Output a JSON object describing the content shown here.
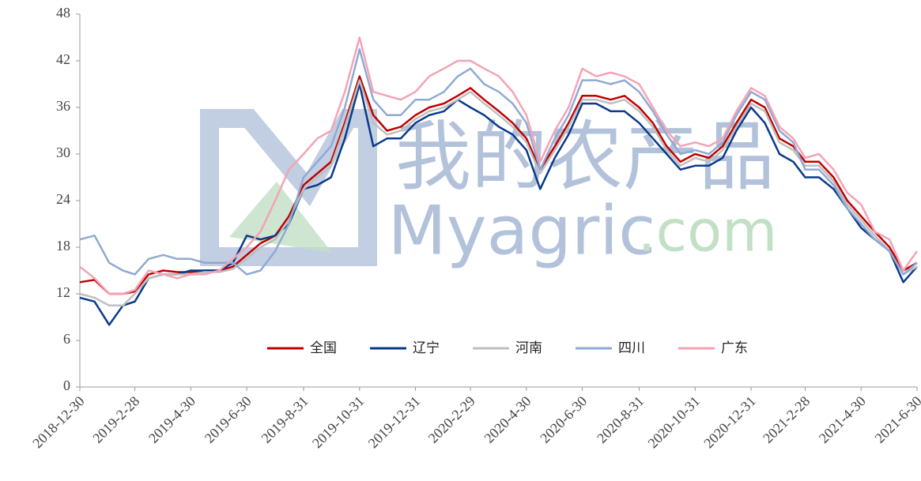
{
  "chart_data": {
    "type": "line",
    "watermark": [
      "我的农产品",
      "Myagric",
      ".com"
    ],
    "x": [
      "2018-12-30",
      "2019-1-15",
      "2019-1-31",
      "2019-2-15",
      "2019-2-28",
      "2019-3-15",
      "2019-3-31",
      "2019-4-15",
      "2019-4-30",
      "2019-5-15",
      "2019-5-31",
      "2019-6-15",
      "2019-6-30",
      "2019-7-15",
      "2019-7-31",
      "2019-8-15",
      "2019-8-31",
      "2019-9-15",
      "2019-9-30",
      "2019-10-15",
      "2019-10-31",
      "2019-11-15",
      "2019-11-30",
      "2019-12-15",
      "2019-12-31",
      "2020-1-15",
      "2020-1-31",
      "2020-2-15",
      "2020-2-29",
      "2020-3-15",
      "2020-3-31",
      "2020-4-15",
      "2020-4-30",
      "2020-5-15",
      "2020-5-31",
      "2020-6-15",
      "2020-6-30",
      "2020-7-15",
      "2020-7-31",
      "2020-8-15",
      "2020-8-31",
      "2020-9-15",
      "2020-9-30",
      "2020-10-15",
      "2020-10-31",
      "2020-11-15",
      "2020-11-30",
      "2020-12-15",
      "2020-12-31",
      "2021-1-15",
      "2021-1-31",
      "2021-2-15",
      "2021-2-28",
      "2021-3-15",
      "2021-3-31",
      "2021-4-15",
      "2021-4-30",
      "2021-5-15",
      "2021-5-31",
      "2021-6-15",
      "2021-6-30"
    ],
    "series": [
      {
        "name": "全国",
        "color": "#c00000",
        "values": [
          13.5,
          13.8,
          12,
          12,
          12.3,
          14.5,
          15,
          14.8,
          14.8,
          15,
          15,
          15.5,
          17,
          18.5,
          19.5,
          22,
          26,
          27.5,
          29,
          34,
          40,
          35,
          33,
          33.5,
          35,
          36,
          36.5,
          37.5,
          38.5,
          37,
          35.5,
          34,
          32,
          28,
          31,
          34,
          37.5,
          37.5,
          37,
          37.5,
          36,
          34,
          31,
          29,
          30,
          29.5,
          31,
          34,
          37,
          36,
          32,
          31,
          29,
          29,
          27,
          24,
          22,
          20,
          18,
          15,
          16
        ]
      },
      {
        "name": "辽宁",
        "color": "#0a3a8a",
        "values": [
          11.5,
          11,
          8,
          10.5,
          11,
          14,
          14.5,
          14.5,
          15,
          15,
          15,
          16,
          19.5,
          19,
          19.5,
          21,
          25.5,
          26,
          27,
          32,
          39,
          31,
          32,
          32,
          34,
          35,
          35.5,
          37,
          36,
          35,
          33.5,
          32.5,
          30.5,
          25.5,
          29.5,
          32.5,
          36.5,
          36.5,
          35.5,
          35.5,
          34,
          32,
          30,
          28,
          28.5,
          28.5,
          29.5,
          33,
          36,
          34,
          30,
          29,
          27,
          27,
          25.5,
          23,
          20.5,
          19,
          17.5,
          13.5,
          15.5
        ]
      },
      {
        "name": "河南",
        "color": "#bfbfbf",
        "values": [
          12,
          11.5,
          10.5,
          10.5,
          12,
          14,
          14.5,
          14.5,
          14.5,
          14.8,
          14.8,
          15.2,
          16.5,
          18,
          19,
          21.5,
          25.5,
          27,
          28.5,
          33.5,
          39.5,
          34,
          32.5,
          33,
          34.5,
          35.5,
          36,
          37,
          38,
          36.5,
          35,
          33.5,
          31.5,
          27.5,
          30.5,
          33.5,
          37,
          37,
          36.5,
          37,
          35.5,
          33.5,
          30.5,
          28.5,
          29.5,
          29,
          30.5,
          33.5,
          36.5,
          35.5,
          31.5,
          30.5,
          28.5,
          28.5,
          26.5,
          23.5,
          21.5,
          19.5,
          17.5,
          14.5,
          15.5
        ]
      },
      {
        "name": "四川",
        "color": "#8faad2",
        "values": [
          19,
          19.5,
          16,
          15,
          14.5,
          16.5,
          17,
          16.5,
          16.5,
          16,
          16,
          16,
          14.5,
          15,
          17.5,
          21,
          27,
          29,
          31,
          36,
          43.5,
          37,
          35,
          35,
          37,
          37,
          38,
          40,
          41,
          39,
          38,
          36.5,
          34,
          28,
          32,
          35,
          39.5,
          39.5,
          39,
          39.5,
          38,
          35.5,
          32.5,
          30,
          30.5,
          30,
          31.5,
          35,
          38,
          37,
          33,
          31.5,
          28,
          28,
          26,
          23,
          21,
          19,
          17.5,
          14.5,
          16
        ]
      },
      {
        "name": "广东",
        "color": "#f4a3b4",
        "values": [
          15.5,
          14,
          12,
          12,
          12.5,
          15,
          14.5,
          14,
          14.5,
          14.5,
          15,
          16.5,
          18,
          20,
          24,
          28,
          30,
          32,
          33,
          38,
          45,
          38,
          37.5,
          37,
          38,
          40,
          41,
          42,
          42,
          41,
          40,
          38,
          35,
          29,
          33,
          36,
          41,
          40,
          40.5,
          40,
          39,
          36,
          33,
          31,
          31.5,
          31,
          32,
          35.5,
          38.5,
          37.5,
          33.5,
          32,
          29.5,
          30,
          28,
          25,
          23.5,
          20,
          19,
          15,
          17.5
        ]
      }
    ],
    "xlim": [
      "2018-12-30",
      "2021-6-30"
    ],
    "xticks": [
      "2018-12-30",
      "2019-2-28",
      "2019-4-30",
      "2019-6-30",
      "2019-8-31",
      "2019-10-31",
      "2019-12-31",
      "2020-2-29",
      "2020-4-30",
      "2020-6-30",
      "2020-8-31",
      "2020-10-31",
      "2020-12-31",
      "2021-2-28",
      "2021-4-30",
      "2021-6-30"
    ],
    "ylim": [
      0,
      48
    ],
    "yticks": [
      0,
      6,
      12,
      18,
      24,
      30,
      36,
      42,
      48
    ],
    "grid": false
  }
}
